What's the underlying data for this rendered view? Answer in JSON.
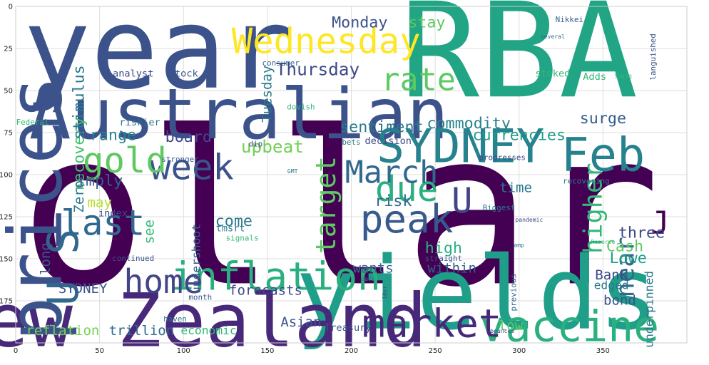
{
  "chart_data": {
    "type": "wordcloud",
    "background": "#ffffff",
    "grid": true,
    "xlim": [
      0,
      400
    ],
    "ylim": [
      200,
      0
    ],
    "x_ticks": [
      0,
      50,
      100,
      150,
      200,
      250,
      300,
      350
    ],
    "y_ticks": [
      0,
      25,
      50,
      75,
      100,
      125,
      150,
      175
    ],
    "words": [
      {
        "text": "dollar",
        "x": 155,
        "y": 130,
        "size": 110,
        "color": "#440154"
      },
      {
        "text": "year",
        "x": 85,
        "y": 30,
        "size": 58,
        "color": "#3b528b"
      },
      {
        "text": "RBA",
        "x": 300,
        "y": 32,
        "size": 68,
        "color": "#21a585"
      },
      {
        "text": "Australian",
        "x": 133,
        "y": 67,
        "size": 36,
        "color": "#3b528b"
      },
      {
        "text": "yields",
        "x": 275,
        "y": 175,
        "size": 52,
        "color": "#1f9e89"
      },
      {
        "text": "New Zealand",
        "x": 100,
        "y": 190,
        "size": 38,
        "color": "#482878"
      },
      {
        "text": "prices",
        "x": 15,
        "y": 120,
        "size": 38,
        "color": "#3b528b",
        "rotate": -90
      },
      {
        "text": "inflation",
        "x": 155,
        "y": 162,
        "size": 20,
        "color": "#2ab07f"
      },
      {
        "text": "SYDNEY",
        "x": 265,
        "y": 85,
        "size": 24,
        "color": "#26828e"
      },
      {
        "text": "Feb",
        "x": 350,
        "y": 90,
        "size": 24,
        "color": "#26828e"
      },
      {
        "text": "vaccine",
        "x": 330,
        "y": 192,
        "size": 22,
        "color": "#2ab07f"
      },
      {
        "text": "market",
        "x": 248,
        "y": 190,
        "size": 20,
        "color": "#482878"
      },
      {
        "text": "peak",
        "x": 233,
        "y": 128,
        "size": 20,
        "color": "#38598c"
      },
      {
        "text": "due",
        "x": 233,
        "y": 110,
        "size": 18,
        "color": "#2ab07f"
      },
      {
        "text": "Wednesday",
        "x": 185,
        "y": 22,
        "size": 18,
        "color": "#fde725"
      },
      {
        "text": "week",
        "x": 105,
        "y": 97,
        "size": 18,
        "color": "#3b528b"
      },
      {
        "text": "gold",
        "x": 65,
        "y": 93,
        "size": 18,
        "color": "#5ec962"
      },
      {
        "text": "last",
        "x": 52,
        "y": 130,
        "size": 18,
        "color": "#31688e"
      },
      {
        "text": "home",
        "x": 88,
        "y": 165,
        "size": 17,
        "color": "#414487"
      },
      {
        "text": "March",
        "x": 224,
        "y": 100,
        "size": 16,
        "color": "#31688e"
      },
      {
        "text": "rate",
        "x": 240,
        "y": 45,
        "size": 16,
        "color": "#5ec962"
      },
      {
        "text": "target",
        "x": 186,
        "y": 118,
        "size": 14,
        "color": "#5ec962",
        "rotate": -90
      },
      {
        "text": "higher",
        "x": 345,
        "y": 120,
        "size": 13,
        "color": "#35b779",
        "rotate": -90
      },
      {
        "text": "U S",
        "x": 30,
        "y": 155,
        "size": 22,
        "color": "#31688e",
        "rotate": -90
      },
      {
        "text": "U",
        "x": 266,
        "y": 117,
        "size": 18,
        "color": "#414487"
      },
      {
        "text": "J",
        "x": 384,
        "y": 130,
        "size": 16,
        "color": "#440154"
      },
      {
        "text": "near",
        "x": 364,
        "y": 155,
        "size": 13,
        "color": "#31688e",
        "rotate": -90
      },
      {
        "text": "Thursday",
        "x": 180,
        "y": 38,
        "size": 9,
        "color": "#3e4989"
      },
      {
        "text": "Monday",
        "x": 205,
        "y": 10,
        "size": 8,
        "color": "#3b528b"
      },
      {
        "text": "stay",
        "x": 245,
        "y": 10,
        "size": 8,
        "color": "#5ec962"
      },
      {
        "text": "commodity",
        "x": 270,
        "y": 70,
        "size": 8,
        "color": "#26828e"
      },
      {
        "text": "currencies",
        "x": 300,
        "y": 77,
        "size": 8,
        "color": "#1f9e89"
      },
      {
        "text": "surge",
        "x": 350,
        "y": 67,
        "size": 8,
        "color": "#355f8d"
      },
      {
        "text": "sentiment",
        "x": 218,
        "y": 72,
        "size": 8,
        "color": "#2a788e"
      },
      {
        "text": "decision",
        "x": 222,
        "y": 80,
        "size": 5,
        "color": "#3e4989"
      },
      {
        "text": "upbeat",
        "x": 153,
        "y": 84,
        "size": 9,
        "color": "#73d056"
      },
      {
        "text": "board",
        "x": 103,
        "y": 78,
        "size": 8,
        "color": "#3e4989"
      },
      {
        "text": "range",
        "x": 58,
        "y": 77,
        "size": 8,
        "color": "#26828e"
      },
      {
        "text": "recovery",
        "x": 38,
        "y": 88,
        "size": 8,
        "color": "#44bf70",
        "rotate": -90
      },
      {
        "text": "stimulus",
        "x": 38,
        "y": 57,
        "size": 8,
        "color": "#2a788e",
        "rotate": -90
      },
      {
        "text": "Tuesday",
        "x": 150,
        "y": 52,
        "size": 7,
        "color": "#2a788e",
        "rotate": -90
      },
      {
        "text": "imply",
        "x": 50,
        "y": 104,
        "size": 8,
        "color": "#355f8d"
      },
      {
        "text": "Zero",
        "x": 38,
        "y": 113,
        "size": 7,
        "color": "#2a788e",
        "rotate": -90
      },
      {
        "text": "may",
        "x": 50,
        "y": 117,
        "size": 7,
        "color": "#b5de2b"
      },
      {
        "text": "index",
        "x": 58,
        "y": 123,
        "size": 5,
        "color": "#3e4989"
      },
      {
        "text": "see",
        "x": 80,
        "y": 134,
        "size": 7,
        "color": "#35b779",
        "rotate": -90
      },
      {
        "text": "long",
        "x": 18,
        "y": 150,
        "size": 7,
        "color": "#38598c",
        "rotate": -90
      },
      {
        "text": "undershoot",
        "x": 108,
        "y": 150,
        "size": 6,
        "color": "#355f8d",
        "rotate": -90
      },
      {
        "text": "come",
        "x": 130,
        "y": 128,
        "size": 8,
        "color": "#2a788e"
      },
      {
        "text": "tmsrt",
        "x": 128,
        "y": 132,
        "size": 5,
        "color": "#2a788e"
      },
      {
        "text": "risk",
        "x": 225,
        "y": 116,
        "size": 8,
        "color": "#31688e"
      },
      {
        "text": "high",
        "x": 255,
        "y": 144,
        "size": 8,
        "color": "#2ab07f"
      },
      {
        "text": "three",
        "x": 373,
        "y": 135,
        "size": 8,
        "color": "#3e4989"
      },
      {
        "text": "Cash",
        "x": 363,
        "y": 143,
        "size": 8,
        "color": "#5ec962"
      },
      {
        "text": "Lowe",
        "x": 365,
        "y": 150,
        "size": 8,
        "color": "#1f9e89"
      },
      {
        "text": "Bank",
        "x": 355,
        "y": 160,
        "size": 7,
        "color": "#3e4989"
      },
      {
        "text": "edged",
        "x": 355,
        "y": 166,
        "size": 6,
        "color": "#2a788e"
      },
      {
        "text": "bond",
        "x": 360,
        "y": 175,
        "size": 7,
        "color": "#3b528b"
      },
      {
        "text": "low",
        "x": 295,
        "y": 190,
        "size": 7,
        "color": "#5ec962"
      },
      {
        "text": "underpinned",
        "x": 378,
        "y": 180,
        "size": 6,
        "color": "#2a788e",
        "rotate": -90
      },
      {
        "text": "time",
        "x": 298,
        "y": 108,
        "size": 7,
        "color": "#2a788e"
      },
      {
        "text": "wants",
        "x": 213,
        "y": 156,
        "size": 7,
        "color": "#31688e"
      },
      {
        "text": "within",
        "x": 260,
        "y": 156,
        "size": 7,
        "color": "#355f8d"
      },
      {
        "text": "forecasts",
        "x": 149,
        "y": 169,
        "size": 7,
        "color": "#3e4989"
      },
      {
        "text": "SYDNEY",
        "x": 40,
        "y": 168,
        "size": 7,
        "color": "#3b528b"
      },
      {
        "text": "reflation",
        "x": 28,
        "y": 193,
        "size": 7,
        "color": "#7ad151"
      },
      {
        "text": "trillion",
        "x": 75,
        "y": 193,
        "size": 7,
        "color": "#31688e"
      },
      {
        "text": "economic",
        "x": 115,
        "y": 193,
        "size": 6,
        "color": "#35b779"
      },
      {
        "text": "Asian",
        "x": 170,
        "y": 188,
        "size": 7,
        "color": "#3b528b"
      },
      {
        "text": "Treasury",
        "x": 198,
        "y": 191,
        "size": 5,
        "color": "#3b528b"
      },
      {
        "text": "stoked",
        "x": 320,
        "y": 40,
        "size": 5,
        "color": "#35b779"
      },
      {
        "text": "Adds",
        "x": 345,
        "y": 42,
        "size": 5,
        "color": "#35b779"
      },
      {
        "text": "languished",
        "x": 380,
        "y": 30,
        "size": 4,
        "color": "#3b528b",
        "rotate": -90
      },
      {
        "text": "Nikkei",
        "x": 330,
        "y": 8,
        "size": 4,
        "color": "#355f8d"
      },
      {
        "text": "several",
        "x": 320,
        "y": 18,
        "size": 3,
        "color": "#31688e"
      },
      {
        "text": "analyst",
        "x": 70,
        "y": 40,
        "size": 5,
        "color": "#3e4989"
      },
      {
        "text": "stock",
        "x": 100,
        "y": 40,
        "size": 5,
        "color": "#38598c"
      },
      {
        "text": "consumer",
        "x": 158,
        "y": 34,
        "size": 4,
        "color": "#31688e"
      },
      {
        "text": "riskier",
        "x": 74,
        "y": 69,
        "size": 5,
        "color": "#2a788e"
      },
      {
        "text": "dovish",
        "x": 170,
        "y": 60,
        "size": 4,
        "color": "#35b779"
      },
      {
        "text": "bets",
        "x": 200,
        "y": 81,
        "size": 4,
        "color": "#2a788e"
      },
      {
        "text": "dip",
        "x": 143,
        "y": 82,
        "size": 4,
        "color": "#3e4989"
      },
      {
        "text": "stronger",
        "x": 98,
        "y": 91,
        "size": 4,
        "color": "#38598c"
      },
      {
        "text": "Federal",
        "x": 10,
        "y": 69,
        "size": 4,
        "color": "#35b779"
      },
      {
        "text": "GMT",
        "x": 165,
        "y": 98,
        "size": 3,
        "color": "#2a788e"
      },
      {
        "text": "progresses",
        "x": 290,
        "y": 90,
        "size": 4,
        "color": "#3e4989"
      },
      {
        "text": "Biggest",
        "x": 288,
        "y": 120,
        "size": 4,
        "color": "#2a788e"
      },
      {
        "text": "pandemic",
        "x": 306,
        "y": 127,
        "size": 3,
        "color": "#3e4989"
      },
      {
        "text": "signals",
        "x": 135,
        "y": 138,
        "size": 4,
        "color": "#35b779"
      },
      {
        "text": "straight",
        "x": 255,
        "y": 150,
        "size": 4,
        "color": "#3b528b"
      },
      {
        "text": "amp",
        "x": 300,
        "y": 142,
        "size": 3,
        "color": "#2a788e"
      },
      {
        "text": "continued",
        "x": 70,
        "y": 150,
        "size": 4,
        "color": "#3b528b"
      },
      {
        "text": "haven",
        "x": 95,
        "y": 186,
        "size": 4,
        "color": "#2a788e"
      },
      {
        "text": "month",
        "x": 110,
        "y": 173,
        "size": 4,
        "color": "#3b528b"
      },
      {
        "text": "previous",
        "x": 297,
        "y": 170,
        "size": 4,
        "color": "#31688e",
        "rotate": -90
      },
      {
        "text": "recovering",
        "x": 340,
        "y": 104,
        "size": 4,
        "color": "#2a788e"
      },
      {
        "text": "Reserve",
        "x": 350,
        "y": 140,
        "size": 3,
        "color": "#35b779"
      },
      {
        "text": "bounces",
        "x": 290,
        "y": 193,
        "size": 3,
        "color": "#3e4989"
      },
      {
        "text": "safe",
        "x": 210,
        "y": 162,
        "size": 3,
        "color": "#2a788e"
      },
      {
        "text": "10yr",
        "x": 220,
        "y": 170,
        "size": 3,
        "color": "#3b528b",
        "rotate": -90
      },
      {
        "text": "TOKYO",
        "x": 362,
        "y": 42,
        "size": 3,
        "color": "#35b779"
      }
    ]
  }
}
